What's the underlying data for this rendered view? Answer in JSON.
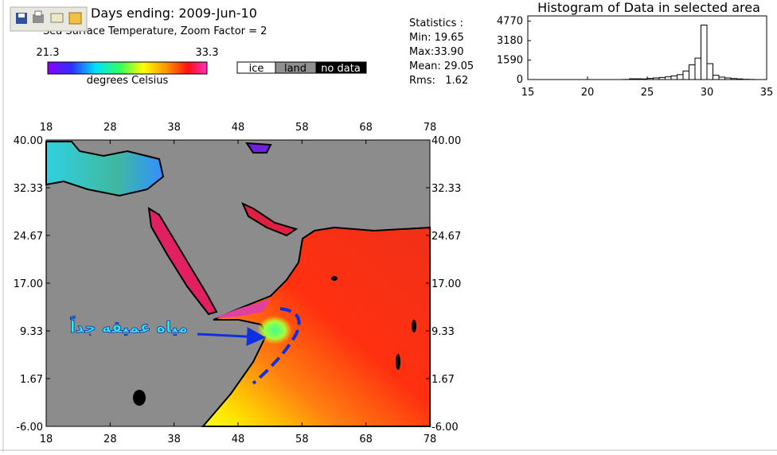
{
  "header": {
    "title": "Days ending: 2009-Jun-10",
    "subtitle": "Sea Surface Temperature,  Zoom Factor = 2"
  },
  "colorbar": {
    "min": 21.3,
    "max": 33.3,
    "label": "degrees Celsius"
  },
  "legend": [
    "ice",
    "land",
    "no data"
  ],
  "statistics": {
    "title": "Statistics :",
    "lines": [
      "Min: 19.65",
      "Max:33.90",
      "Mean: 29.05",
      "Rms:   1.62"
    ]
  },
  "chart_data": {
    "type": "histogram",
    "title": "Histogram of Data in selected area",
    "bins": [
      23,
      23.5,
      24,
      24.5,
      25,
      25.5,
      26,
      26.5,
      27,
      27.5,
      28,
      28.5,
      29,
      29.5,
      30,
      30.5,
      31,
      31.5,
      32,
      32.5,
      33,
      33.5,
      34
    ],
    "values": [
      10,
      60,
      60,
      50,
      90,
      130,
      170,
      220,
      300,
      400,
      700,
      1200,
      1750,
      4450,
      1300,
      350,
      200,
      130,
      80,
      50,
      20,
      10
    ],
    "color": "#000000",
    "xlim": [
      15,
      35
    ],
    "ylim": [
      0,
      5200
    ],
    "xticks": [
      15,
      20,
      25,
      30,
      35
    ],
    "yticks": [
      0,
      1590,
      3180,
      4770
    ]
  },
  "map": {
    "xlim": [
      18,
      78
    ],
    "ylim": [
      -6,
      40
    ],
    "xticks": [
      18,
      28,
      38,
      48,
      58,
      68,
      78
    ],
    "yticks": [
      {
        "value": 40,
        "label": "40.00"
      },
      {
        "value": 32.33,
        "label": "32.33"
      },
      {
        "value": 24.67,
        "label": "24.67"
      },
      {
        "value": 17,
        "label": "17.00"
      },
      {
        "value": 9.33,
        "label": "9.33"
      },
      {
        "value": 1.67,
        "label": "1.67"
      },
      {
        "value": -6,
        "label": "-6.00"
      }
    ],
    "annotation": "مياه عميقه جداً"
  }
}
